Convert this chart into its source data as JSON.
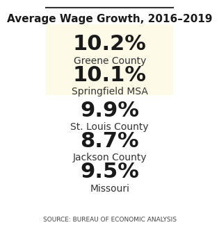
{
  "title": "Average Wage Growth, 2016–2019",
  "entries": [
    {
      "value": "10.2%",
      "label": "Greene County",
      "highlight": true
    },
    {
      "value": "10.1%",
      "label": "Springfield MSA",
      "highlight": true
    },
    {
      "value": "9.9%",
      "label": "St. Louis County",
      "highlight": false
    },
    {
      "value": "8.7%",
      "label": "Jackson County",
      "highlight": false
    },
    {
      "value": "9.5%",
      "label": "Missouri",
      "highlight": false
    }
  ],
  "source": "SOURCE: BUREAU OF ECONOMIC ANALYSIS",
  "bg_color": "#ffffff",
  "highlight_bg": "#fdfae8",
  "title_fontsize": 11,
  "value_fontsize": 22,
  "label_fontsize": 10,
  "source_fontsize": 6.5
}
